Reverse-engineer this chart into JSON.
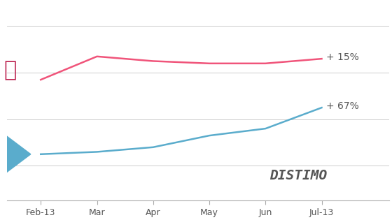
{
  "x_labels": [
    "Feb-13",
    "Mar",
    "Apr",
    "May",
    "Jun",
    "Jul-13"
  ],
  "x_values": [
    0,
    1,
    2,
    3,
    4,
    5
  ],
  "apple_y": [
    62,
    72,
    70,
    69,
    69,
    71
  ],
  "google_y": [
    30,
    31,
    33,
    38,
    41,
    50
  ],
  "apple_color": "#f0547a",
  "google_color": "#5aaccc",
  "apple_label": "+ 15%",
  "google_label": "+ 67%",
  "background_color": "#ffffff",
  "grid_color": "#cccccc",
  "distimo_text": "DISTIMO",
  "distimo_color": "#555555"
}
